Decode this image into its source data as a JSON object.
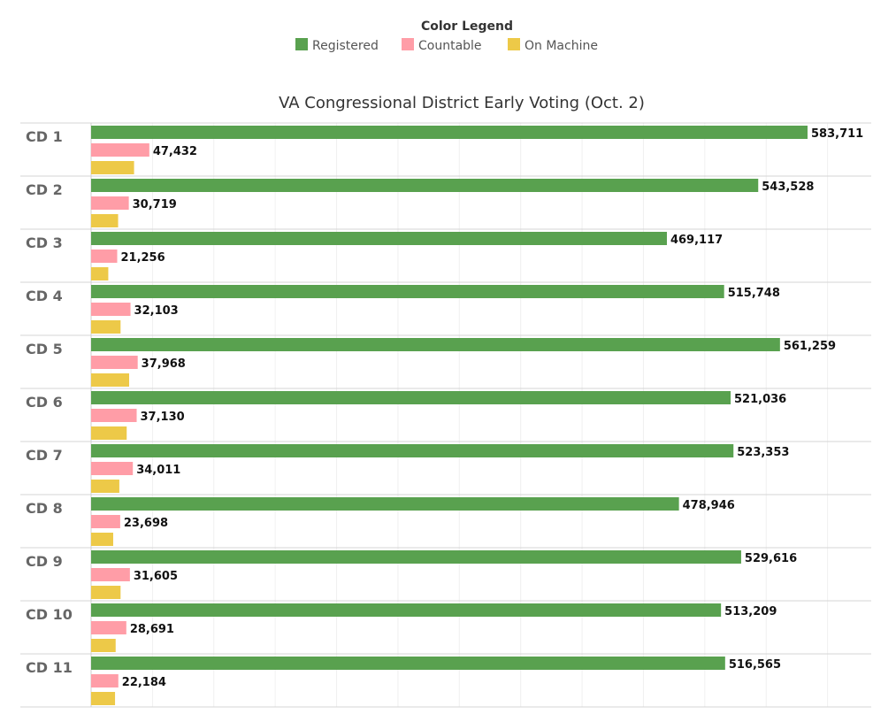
{
  "legend": {
    "title": "Color Legend",
    "items": [
      {
        "label": "Registered",
        "color": "#59a14f"
      },
      {
        "label": "Countable",
        "color": "#ff9da7"
      },
      {
        "label": "On Machine",
        "color": "#edc948"
      }
    ]
  },
  "chart_data": {
    "type": "bar",
    "orientation": "horizontal",
    "title": "VA Congressional District Early Voting (Oct. 2)",
    "categories": [
      "CD 1",
      "CD 2",
      "CD 3",
      "CD 4",
      "CD 5",
      "CD 6",
      "CD 7",
      "CD 8",
      "CD 9",
      "CD 10",
      "CD 11"
    ],
    "series": [
      {
        "name": "Registered",
        "color": "#59a14f",
        "show_labels": true,
        "values": [
          583711,
          543528,
          469117,
          515748,
          561259,
          521036,
          523353,
          478946,
          529616,
          513209,
          516565
        ]
      },
      {
        "name": "Countable",
        "color": "#ff9da7",
        "show_labels": true,
        "values": [
          47432,
          30719,
          21256,
          32103,
          37968,
          37130,
          34011,
          23698,
          31605,
          28691,
          22184
        ]
      },
      {
        "name": "On Machine",
        "color": "#edc948",
        "show_labels": false,
        "values": [
          35000,
          22000,
          14000,
          24000,
          31000,
          29000,
          23000,
          18000,
          24000,
          20000,
          19500
        ]
      }
    ],
    "xlim": [
      0,
      600000
    ],
    "grid": true,
    "legend_position": "top-center"
  }
}
